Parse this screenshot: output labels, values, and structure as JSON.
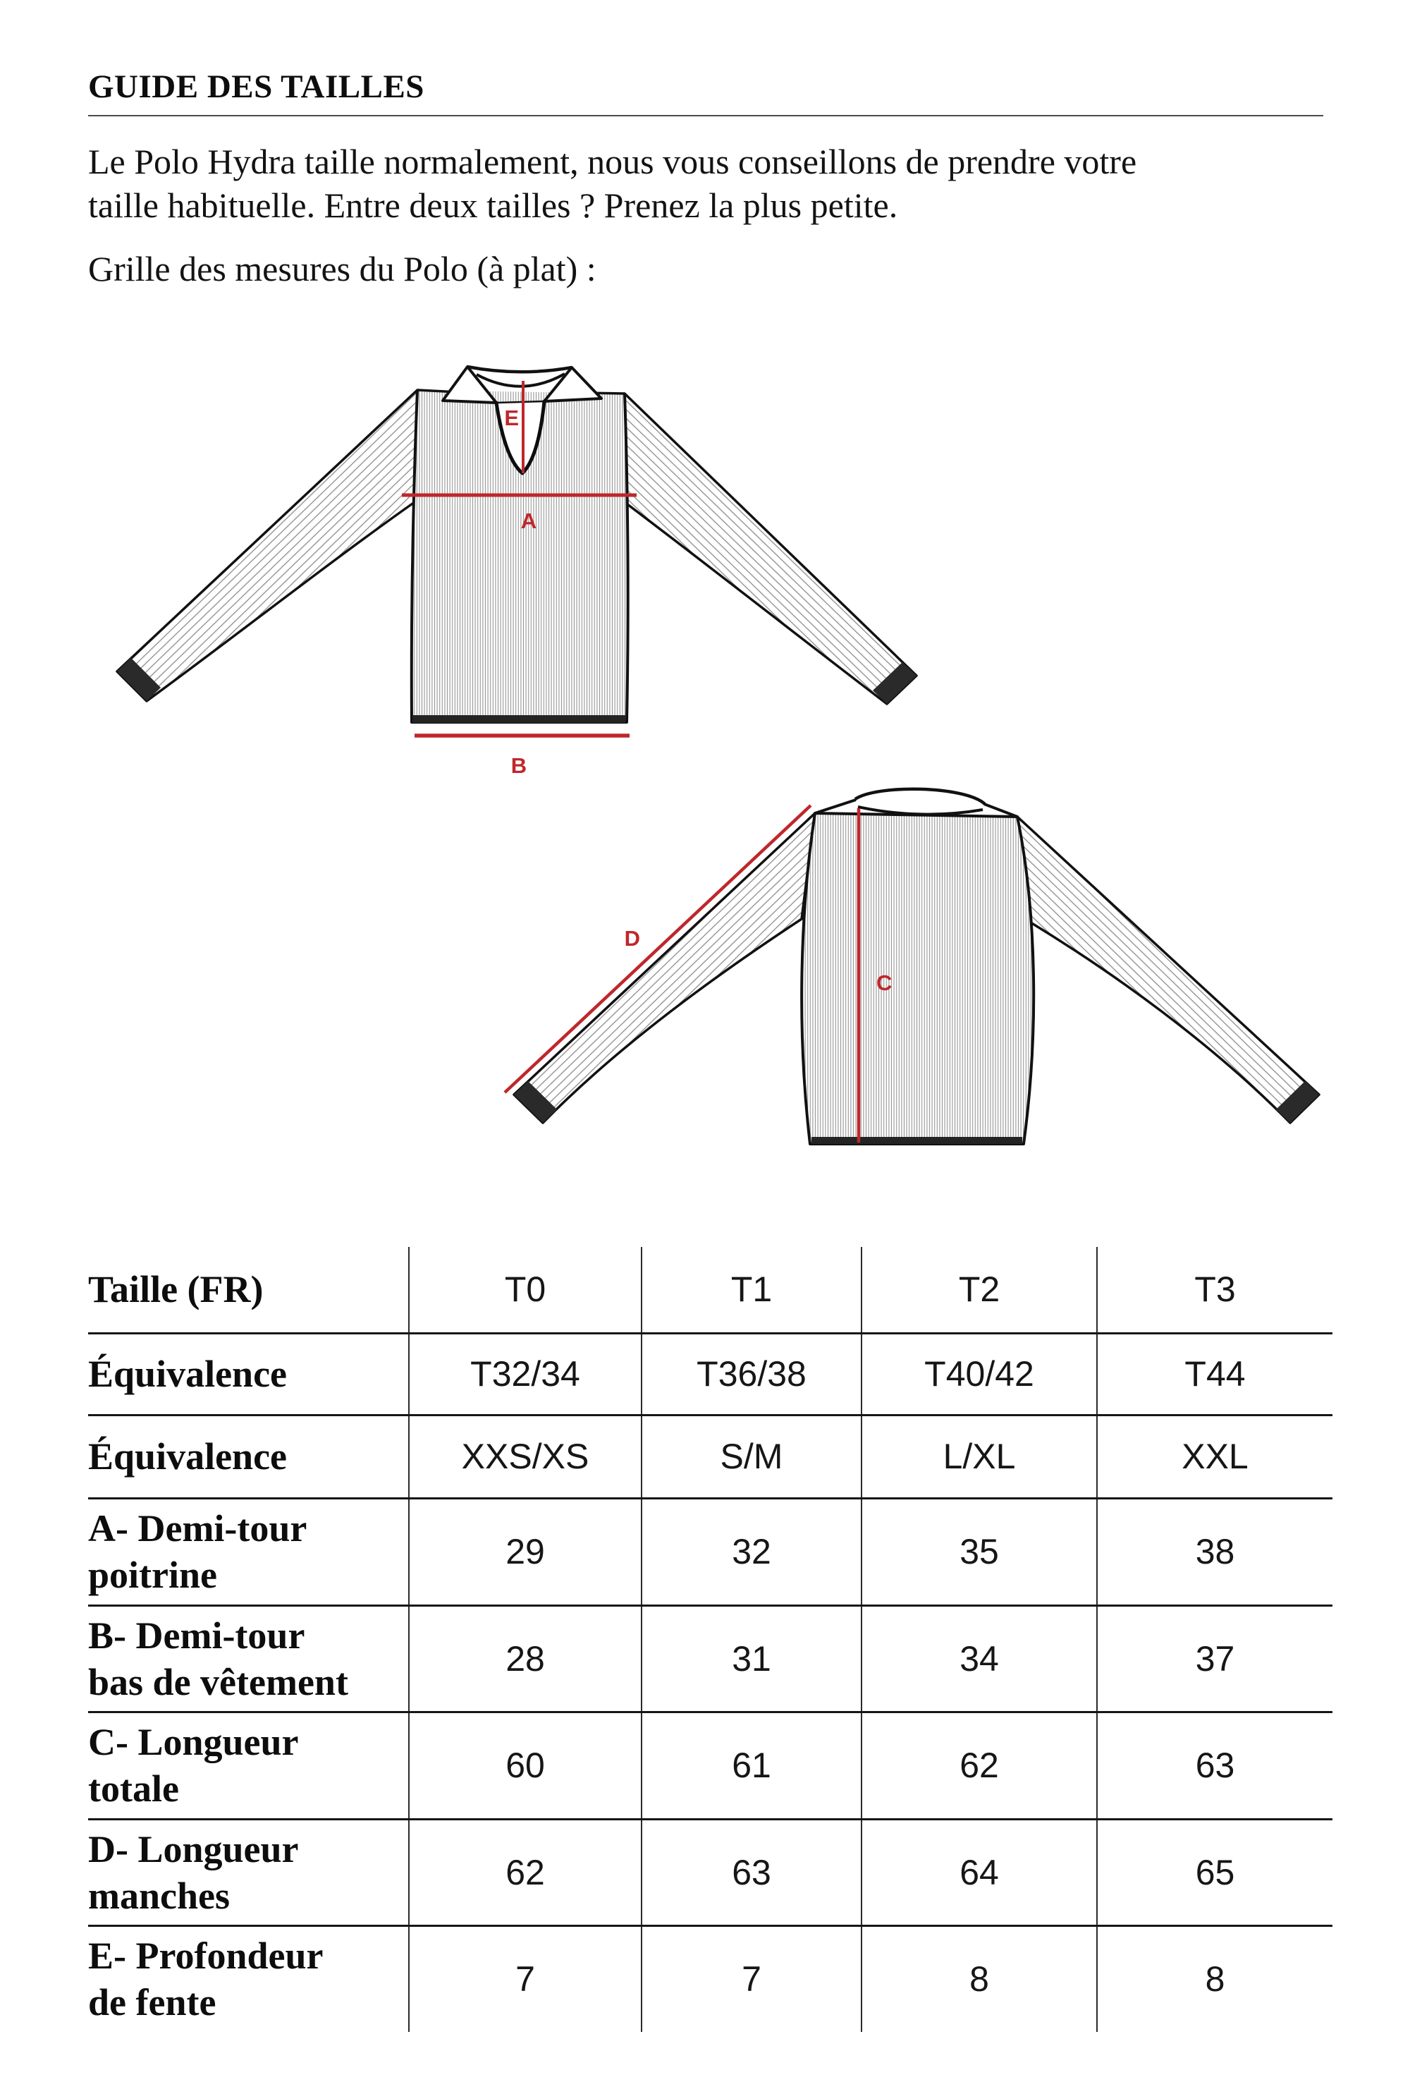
{
  "header": {
    "title": "GUIDE DES TAILLES"
  },
  "intro": {
    "lines": [
      "Le Polo Hydra taille normalement, nous vous conseillons de prendre votre",
      "taille habituelle. Entre deux tailles ? Prenez la plus petite."
    ]
  },
  "subtitle": "Grille des mesures du Polo (à plat) :",
  "diagram": {
    "accent": "#bf272b",
    "outline": "#111111",
    "rib": "#959595",
    "labels": {
      "a": "A",
      "b": "B",
      "c": "C",
      "d": "D",
      "e": "E"
    }
  },
  "table": {
    "rows": [
      {
        "label_lines": [
          "Taille (FR)"
        ],
        "values": [
          "T0",
          "T1",
          "T2",
          "T3"
        ]
      },
      {
        "label_lines": [
          "Équivalence"
        ],
        "values": [
          "T32/34",
          "T36/38",
          "T40/42",
          "T44"
        ]
      },
      {
        "label_lines": [
          "Équivalence"
        ],
        "values": [
          "XXS/XS",
          "S/M",
          "L/XL",
          "XXL"
        ]
      },
      {
        "label_lines": [
          "A- Demi-tour",
          "poitrine"
        ],
        "values": [
          "29",
          "32",
          "35",
          "38"
        ]
      },
      {
        "label_lines": [
          "B- Demi-tour",
          "bas de vêtement"
        ],
        "values": [
          "28",
          "31",
          "34",
          "37"
        ]
      },
      {
        "label_lines": [
          "C- Longueur",
          "totale"
        ],
        "values": [
          "60",
          "61",
          "62",
          "63"
        ]
      },
      {
        "label_lines": [
          "D- Longueur",
          "manches"
        ],
        "values": [
          "62",
          "63",
          "64",
          "65"
        ]
      },
      {
        "label_lines": [
          "E- Profondeur",
          "de fente"
        ],
        "values": [
          "7",
          "7",
          "8",
          "8"
        ]
      }
    ]
  }
}
